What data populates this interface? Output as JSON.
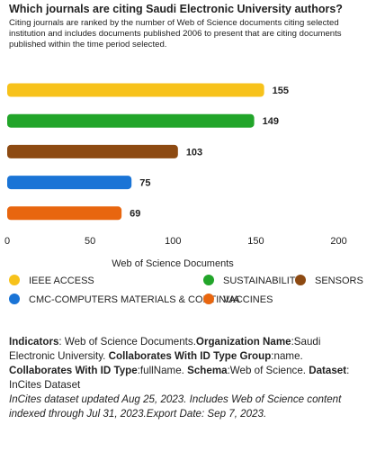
{
  "chart_data": {
    "type": "bar",
    "orientation": "horizontal",
    "title": "Which journals are citing Saudi Electronic University authors?",
    "subtitle": "Citing journals are ranked by the number of Web of Science documents citing selected institution and includes documents published 2006 to present that are citing documents published within the time period selected.",
    "categories": [
      "IEEE ACCESS",
      "SUSTAINABILITY",
      "SENSORS",
      "CMC-COMPUTERS MATERIALS & CONTINUA",
      "VACCINES"
    ],
    "values": [
      155,
      149,
      103,
      75,
      69
    ],
    "colors": [
      "#f7c21b",
      "#22a52a",
      "#8d4a12",
      "#1a74d6",
      "#e8660f"
    ],
    "xlabel": "Web of Science Documents",
    "xlim": [
      0,
      210
    ],
    "xticks": [
      0,
      50,
      100,
      150,
      200
    ],
    "grid": false
  },
  "footer": {
    "items": [
      {
        "label": "Indicators",
        "text": ": Web of Science Documents."
      },
      {
        "label": "Organization Name",
        "text": ":Saudi Electronic University. "
      },
      {
        "label": "Collaborates With ID Type Group",
        "text": ":name. "
      },
      {
        "label": "Collaborates With ID Type",
        "text": ":fullName. "
      },
      {
        "label": "Schema",
        "text": ":Web of Science. "
      },
      {
        "label": "Dataset",
        "text": ": InCites Dataset"
      }
    ],
    "note": "InCites dataset updated Aug 25, 2023. Includes Web of Science content indexed through Jul 31, 2023.Export Date: Sep 7, 2023."
  }
}
